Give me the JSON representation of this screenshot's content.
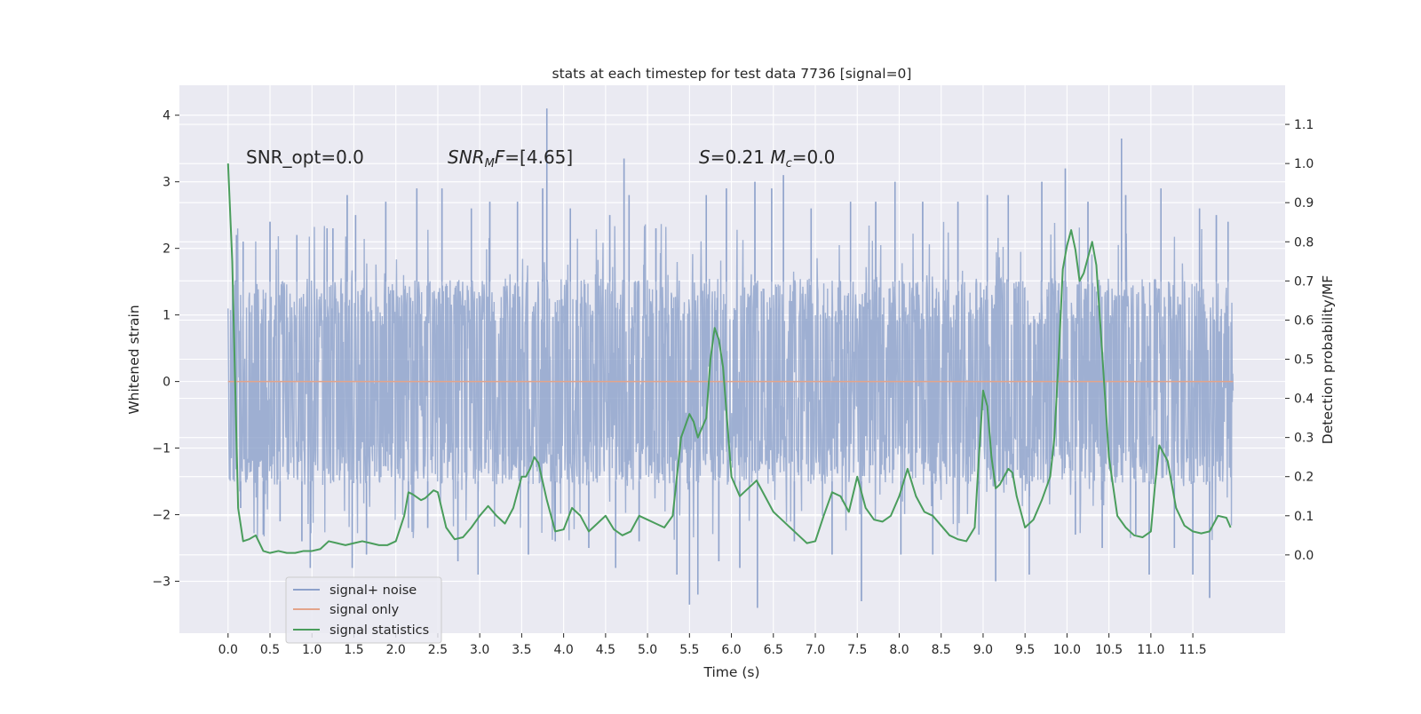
{
  "chart_data": {
    "type": "line",
    "title": "stats at each timestep for test data 7736 [signal=0]",
    "xlabel": "Time (s)",
    "ylabel_left": "Whitened strain",
    "ylabel_right": "Detection probability/MF",
    "xlim": [
      -0.58,
      12.6
    ],
    "ylim_left": [
      -3.78,
      4.45
    ],
    "ylim_right": [
      -0.2,
      1.2
    ],
    "x_ticks": [
      0.0,
      0.5,
      1.0,
      1.5,
      2.0,
      2.5,
      3.0,
      3.5,
      4.0,
      4.5,
      5.0,
      5.5,
      6.0,
      6.5,
      7.0,
      7.5,
      8.0,
      8.5,
      9.0,
      9.5,
      10.0,
      10.5,
      11.0,
      11.5
    ],
    "x_tick_labels": [
      "0.0",
      "0.5",
      "1.0",
      "1.5",
      "2.0",
      "2.5",
      "3.0",
      "3.5",
      "4.0",
      "4.5",
      "5.0",
      "5.5",
      "6.0",
      "6.5",
      "7.0",
      "7.5",
      "8.0",
      "8.5",
      "9.0",
      "9.5",
      "10.0",
      "10.5",
      "11.0",
      "11.5"
    ],
    "y_left_ticks": [
      -3,
      -2,
      -1,
      0,
      1,
      2,
      3,
      4
    ],
    "y_left_tick_labels": [
      "−3",
      "−2",
      "−1",
      "0",
      "1",
      "2",
      "3",
      "4"
    ],
    "y_right_ticks": [
      0.0,
      0.1,
      0.2,
      0.3,
      0.4,
      0.5,
      0.6,
      0.7,
      0.8,
      0.9,
      1.0,
      1.1
    ],
    "y_right_tick_labels": [
      "0.0",
      "0.1",
      "0.2",
      "0.3",
      "0.4",
      "0.5",
      "0.6",
      "0.7",
      "0.8",
      "0.9",
      "1.0",
      "1.1"
    ],
    "grid": true,
    "legend_position": "lower-left",
    "annotations": [
      {
        "name": "snr-opt",
        "text": "SNR_opt=0.0",
        "x": 0.2,
        "y": 3.35
      },
      {
        "name": "snr-mf",
        "text": "SNR_MF=[4.65]",
        "x": 2.6,
        "y": 3.35
      },
      {
        "name": "s-mc",
        "text": "S=0.21   Mc=0.0",
        "x": 5.6,
        "y": 3.35
      }
    ],
    "series": [
      {
        "name": "signal+ noise",
        "axis": "left",
        "color": "#8ea2cb",
        "style": "dense-noise",
        "t_start": 0.0,
        "t_end": 11.98,
        "n_samples": 2400,
        "core_band": [
          -1.55,
          1.55
        ],
        "envelope": [
          -3.4,
          4.1
        ],
        "spikes": [
          {
            "x": 0.1,
            "y": 2.2
          },
          {
            "x": 0.15,
            "y": -1.9
          },
          {
            "x": 0.18,
            "y": 2.1
          },
          {
            "x": 0.42,
            "y": -2.3
          },
          {
            "x": 0.5,
            "y": 2.4
          },
          {
            "x": 0.62,
            "y": -2.1
          },
          {
            "x": 0.82,
            "y": 2.2
          },
          {
            "x": 0.88,
            "y": -2.4
          },
          {
            "x": 0.98,
            "y": -2.8
          },
          {
            "x": 1.18,
            "y": 2.3
          },
          {
            "x": 1.25,
            "y": 2.3
          },
          {
            "x": 1.42,
            "y": 2.8
          },
          {
            "x": 1.48,
            "y": -2.8
          },
          {
            "x": 1.52,
            "y": 2.5
          },
          {
            "x": 1.65,
            "y": -2.6
          },
          {
            "x": 1.88,
            "y": 2.7
          },
          {
            "x": 2.15,
            "y": -2.2
          },
          {
            "x": 2.25,
            "y": 2.9
          },
          {
            "x": 2.38,
            "y": -2.2
          },
          {
            "x": 2.55,
            "y": 2.9
          },
          {
            "x": 2.74,
            "y": -2.7
          },
          {
            "x": 2.9,
            "y": 2.6
          },
          {
            "x": 2.98,
            "y": -2.9
          },
          {
            "x": 3.12,
            "y": 2.7
          },
          {
            "x": 3.45,
            "y": 2.7
          },
          {
            "x": 3.58,
            "y": -2.6
          },
          {
            "x": 3.75,
            "y": 2.9
          },
          {
            "x": 3.8,
            "y": 4.1
          },
          {
            "x": 3.9,
            "y": -2.4
          },
          {
            "x": 4.08,
            "y": 2.6
          },
          {
            "x": 4.3,
            "y": -2.5
          },
          {
            "x": 4.55,
            "y": 2.5
          },
          {
            "x": 4.62,
            "y": -2.8
          },
          {
            "x": 4.72,
            "y": 3.35
          },
          {
            "x": 4.78,
            "y": 2.8
          },
          {
            "x": 4.9,
            "y": -2.4
          },
          {
            "x": 5.1,
            "y": 2.3
          },
          {
            "x": 5.35,
            "y": -2.9
          },
          {
            "x": 5.5,
            "y": -3.35
          },
          {
            "x": 5.6,
            "y": -3.2
          },
          {
            "x": 5.7,
            "y": 2.8
          },
          {
            "x": 5.85,
            "y": -2.7
          },
          {
            "x": 5.94,
            "y": 2.9
          },
          {
            "x": 6.1,
            "y": -2.8
          },
          {
            "x": 6.28,
            "y": 3.0
          },
          {
            "x": 6.31,
            "y": -3.4
          },
          {
            "x": 6.48,
            "y": 2.9
          },
          {
            "x": 6.62,
            "y": 3.1
          },
          {
            "x": 6.75,
            "y": -2.4
          },
          {
            "x": 6.95,
            "y": 2.6
          },
          {
            "x": 7.2,
            "y": -2.6
          },
          {
            "x": 7.42,
            "y": 2.7
          },
          {
            "x": 7.55,
            "y": -3.3
          },
          {
            "x": 7.72,
            "y": 2.7
          },
          {
            "x": 7.95,
            "y": 3.0
          },
          {
            "x": 8.02,
            "y": -2.6
          },
          {
            "x": 8.28,
            "y": 2.7
          },
          {
            "x": 8.4,
            "y": -2.6
          },
          {
            "x": 8.7,
            "y": 2.7
          },
          {
            "x": 8.95,
            "y": -2.3
          },
          {
            "x": 9.05,
            "y": 2.8
          },
          {
            "x": 9.15,
            "y": -3.0
          },
          {
            "x": 9.3,
            "y": 2.8
          },
          {
            "x": 9.55,
            "y": -2.9
          },
          {
            "x": 9.7,
            "y": 3.0
          },
          {
            "x": 9.98,
            "y": 3.2
          },
          {
            "x": 10.1,
            "y": -2.3
          },
          {
            "x": 10.25,
            "y": 2.7
          },
          {
            "x": 10.42,
            "y": -2.5
          },
          {
            "x": 10.65,
            "y": 3.65
          },
          {
            "x": 10.7,
            "y": 2.8
          },
          {
            "x": 10.82,
            "y": -2.3
          },
          {
            "x": 10.98,
            "y": -2.9
          },
          {
            "x": 11.12,
            "y": 2.9
          },
          {
            "x": 11.28,
            "y": -2.5
          },
          {
            "x": 11.5,
            "y": -2.9
          },
          {
            "x": 11.58,
            "y": 2.6
          },
          {
            "x": 11.7,
            "y": -3.25
          },
          {
            "x": 11.78,
            "y": 2.5
          },
          {
            "x": 11.92,
            "y": 2.4
          }
        ]
      },
      {
        "name": "signal only",
        "axis": "left",
        "color": "#e3a48b",
        "x": [
          0.0,
          11.98
        ],
        "y": [
          0.0,
          0.0
        ]
      },
      {
        "name": "signal statistics",
        "axis": "right",
        "color": "#4a9d5c",
        "x": [
          0.0,
          0.05,
          0.12,
          0.18,
          0.25,
          0.33,
          0.42,
          0.5,
          0.6,
          0.7,
          0.8,
          0.9,
          1.0,
          1.1,
          1.2,
          1.3,
          1.4,
          1.5,
          1.6,
          1.7,
          1.8,
          1.9,
          2.0,
          2.1,
          2.15,
          2.2,
          2.3,
          2.35,
          2.45,
          2.5,
          2.6,
          2.7,
          2.8,
          2.9,
          3.0,
          3.1,
          3.2,
          3.3,
          3.4,
          3.5,
          3.55,
          3.6,
          3.65,
          3.7,
          3.8,
          3.9,
          4.0,
          4.1,
          4.2,
          4.3,
          4.4,
          4.5,
          4.6,
          4.7,
          4.8,
          4.9,
          5.0,
          5.1,
          5.2,
          5.3,
          5.4,
          5.5,
          5.55,
          5.6,
          5.7,
          5.75,
          5.8,
          5.85,
          5.9,
          5.95,
          6.0,
          6.1,
          6.2,
          6.3,
          6.4,
          6.5,
          6.6,
          6.7,
          6.8,
          6.9,
          7.0,
          7.1,
          7.2,
          7.3,
          7.4,
          7.5,
          7.6,
          7.7,
          7.8,
          7.9,
          8.0,
          8.1,
          8.2,
          8.3,
          8.4,
          8.5,
          8.6,
          8.7,
          8.8,
          8.9,
          8.95,
          9.0,
          9.05,
          9.1,
          9.15,
          9.2,
          9.3,
          9.35,
          9.4,
          9.5,
          9.6,
          9.7,
          9.8,
          9.85,
          9.9,
          9.95,
          10.0,
          10.05,
          10.1,
          10.15,
          10.2,
          10.25,
          10.3,
          10.35,
          10.4,
          10.5,
          10.6,
          10.7,
          10.8,
          10.9,
          11.0,
          11.05,
          11.1,
          11.2,
          11.3,
          11.4,
          11.5,
          11.6,
          11.7,
          11.8,
          11.9,
          11.95
        ],
        "y": [
          1.0,
          0.75,
          0.12,
          0.035,
          0.04,
          0.05,
          0.01,
          0.005,
          0.01,
          0.005,
          0.005,
          0.01,
          0.01,
          0.015,
          0.035,
          0.03,
          0.025,
          0.03,
          0.035,
          0.03,
          0.025,
          0.025,
          0.035,
          0.1,
          0.16,
          0.155,
          0.14,
          0.145,
          0.165,
          0.16,
          0.07,
          0.04,
          0.045,
          0.07,
          0.1,
          0.125,
          0.1,
          0.08,
          0.12,
          0.2,
          0.2,
          0.22,
          0.25,
          0.235,
          0.14,
          0.06,
          0.065,
          0.12,
          0.1,
          0.06,
          0.08,
          0.1,
          0.065,
          0.05,
          0.06,
          0.1,
          0.09,
          0.08,
          0.07,
          0.1,
          0.3,
          0.36,
          0.34,
          0.3,
          0.35,
          0.5,
          0.58,
          0.55,
          0.48,
          0.34,
          0.2,
          0.15,
          0.17,
          0.19,
          0.15,
          0.11,
          0.09,
          0.07,
          0.05,
          0.03,
          0.035,
          0.1,
          0.16,
          0.15,
          0.11,
          0.2,
          0.12,
          0.09,
          0.085,
          0.1,
          0.15,
          0.22,
          0.15,
          0.11,
          0.1,
          0.075,
          0.05,
          0.04,
          0.035,
          0.07,
          0.25,
          0.42,
          0.38,
          0.25,
          0.17,
          0.18,
          0.22,
          0.21,
          0.15,
          0.07,
          0.09,
          0.14,
          0.2,
          0.3,
          0.5,
          0.73,
          0.79,
          0.83,
          0.78,
          0.7,
          0.72,
          0.76,
          0.8,
          0.74,
          0.58,
          0.25,
          0.1,
          0.07,
          0.05,
          0.045,
          0.06,
          0.18,
          0.28,
          0.24,
          0.12,
          0.075,
          0.06,
          0.055,
          0.06,
          0.1,
          0.095,
          0.07
        ]
      }
    ]
  }
}
